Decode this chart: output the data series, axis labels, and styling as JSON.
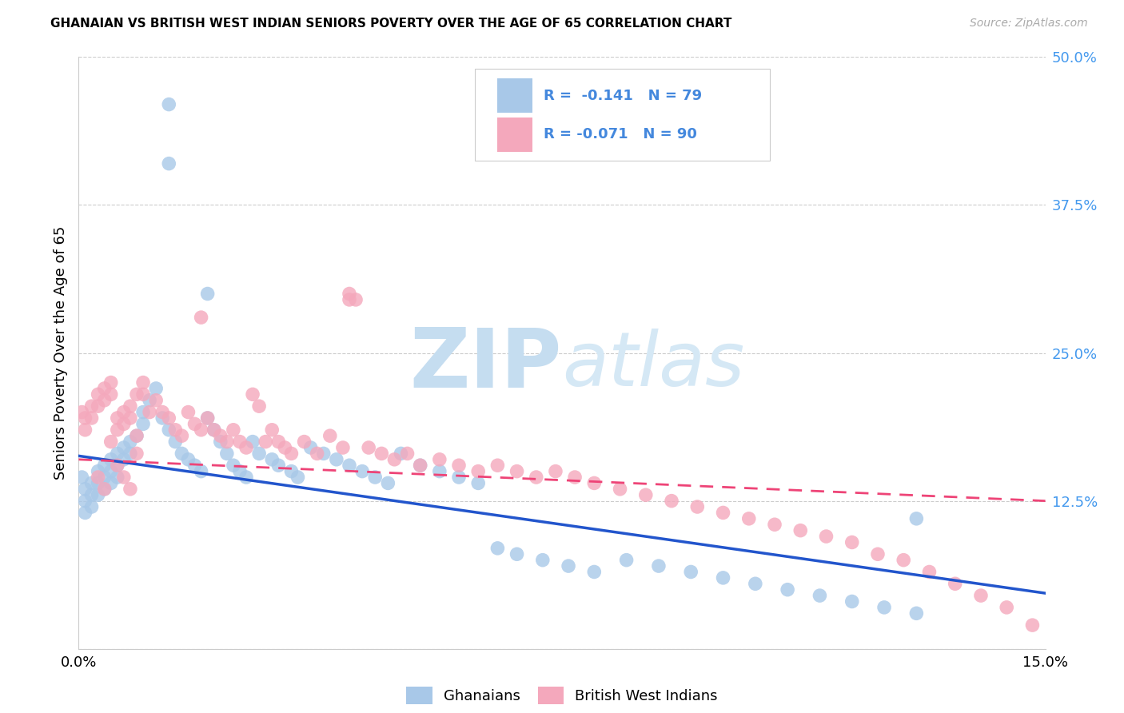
{
  "title": "GHANAIAN VS BRITISH WEST INDIAN SENIORS POVERTY OVER THE AGE OF 65 CORRELATION CHART",
  "source": "Source: ZipAtlas.com",
  "ylabel": "Seniors Poverty Over the Age of 65",
  "xmin": 0.0,
  "xmax": 0.15,
  "ymin": 0.0,
  "ymax": 0.5,
  "legend_r1_prefix": "R = ",
  "legend_r1_val": "-0.141",
  "legend_n1_prefix": "N = ",
  "legend_n1_val": "79",
  "legend_r2_prefix": "R = ",
  "legend_r2_val": "-0.071",
  "legend_n2_prefix": "N = ",
  "legend_n2_val": "90",
  "color_ghanaian": "#a8c8e8",
  "color_bwi": "#f4a8bc",
  "color_line_ghanaian": "#2255cc",
  "color_line_bwi": "#ee4477",
  "color_legend_text": "#4488dd",
  "color_ytick": "#4499ee",
  "watermark_zip": "#c5ddf0",
  "watermark_atlas": "#d5e8f5",
  "legend_label_1": "Ghanaians",
  "legend_label_2": "British West Indians",
  "trend_g_x0": 0.0,
  "trend_g_y0": 0.163,
  "trend_g_x1": 0.15,
  "trend_g_y1": 0.047,
  "trend_b_x0": 0.0,
  "trend_b_y0": 0.16,
  "trend_b_x1": 0.15,
  "trend_b_y1": 0.125,
  "ghanaian_x": [
    0.0005,
    0.001,
    0.001,
    0.001,
    0.002,
    0.002,
    0.002,
    0.003,
    0.003,
    0.003,
    0.004,
    0.004,
    0.004,
    0.005,
    0.005,
    0.005,
    0.006,
    0.006,
    0.006,
    0.007,
    0.007,
    0.008,
    0.008,
    0.009,
    0.01,
    0.01,
    0.011,
    0.012,
    0.013,
    0.014,
    0.015,
    0.016,
    0.017,
    0.018,
    0.019,
    0.02,
    0.021,
    0.022,
    0.023,
    0.024,
    0.025,
    0.026,
    0.027,
    0.028,
    0.03,
    0.031,
    0.033,
    0.034,
    0.036,
    0.038,
    0.04,
    0.042,
    0.044,
    0.046,
    0.048,
    0.05,
    0.053,
    0.056,
    0.059,
    0.062,
    0.065,
    0.068,
    0.072,
    0.076,
    0.08,
    0.085,
    0.09,
    0.095,
    0.1,
    0.105,
    0.11,
    0.115,
    0.12,
    0.125,
    0.13,
    0.014,
    0.014,
    0.02,
    0.13
  ],
  "ghanaian_y": [
    0.145,
    0.135,
    0.125,
    0.115,
    0.14,
    0.13,
    0.12,
    0.15,
    0.14,
    0.13,
    0.155,
    0.145,
    0.135,
    0.16,
    0.15,
    0.14,
    0.165,
    0.155,
    0.145,
    0.17,
    0.16,
    0.175,
    0.165,
    0.18,
    0.2,
    0.19,
    0.21,
    0.22,
    0.195,
    0.185,
    0.175,
    0.165,
    0.16,
    0.155,
    0.15,
    0.195,
    0.185,
    0.175,
    0.165,
    0.155,
    0.15,
    0.145,
    0.175,
    0.165,
    0.16,
    0.155,
    0.15,
    0.145,
    0.17,
    0.165,
    0.16,
    0.155,
    0.15,
    0.145,
    0.14,
    0.165,
    0.155,
    0.15,
    0.145,
    0.14,
    0.085,
    0.08,
    0.075,
    0.07,
    0.065,
    0.075,
    0.07,
    0.065,
    0.06,
    0.055,
    0.05,
    0.045,
    0.04,
    0.035,
    0.03,
    0.46,
    0.41,
    0.3,
    0.11
  ],
  "bwi_x": [
    0.0005,
    0.001,
    0.001,
    0.002,
    0.002,
    0.003,
    0.003,
    0.004,
    0.004,
    0.005,
    0.005,
    0.006,
    0.006,
    0.007,
    0.007,
    0.008,
    0.008,
    0.009,
    0.009,
    0.01,
    0.01,
    0.011,
    0.012,
    0.013,
    0.014,
    0.015,
    0.016,
    0.017,
    0.018,
    0.019,
    0.02,
    0.021,
    0.022,
    0.023,
    0.024,
    0.025,
    0.026,
    0.027,
    0.028,
    0.029,
    0.03,
    0.031,
    0.032,
    0.033,
    0.035,
    0.037,
    0.039,
    0.041,
    0.043,
    0.045,
    0.047,
    0.049,
    0.051,
    0.053,
    0.056,
    0.059,
    0.062,
    0.065,
    0.068,
    0.071,
    0.074,
    0.077,
    0.08,
    0.084,
    0.088,
    0.092,
    0.096,
    0.1,
    0.104,
    0.108,
    0.112,
    0.116,
    0.12,
    0.124,
    0.128,
    0.132,
    0.136,
    0.14,
    0.144,
    0.148,
    0.019,
    0.042,
    0.042,
    0.005,
    0.006,
    0.007,
    0.008,
    0.009,
    0.003,
    0.004
  ],
  "bwi_y": [
    0.2,
    0.195,
    0.185,
    0.205,
    0.195,
    0.215,
    0.205,
    0.22,
    0.21,
    0.225,
    0.215,
    0.195,
    0.185,
    0.2,
    0.19,
    0.205,
    0.195,
    0.18,
    0.215,
    0.225,
    0.215,
    0.2,
    0.21,
    0.2,
    0.195,
    0.185,
    0.18,
    0.2,
    0.19,
    0.185,
    0.195,
    0.185,
    0.18,
    0.175,
    0.185,
    0.175,
    0.17,
    0.215,
    0.205,
    0.175,
    0.185,
    0.175,
    0.17,
    0.165,
    0.175,
    0.165,
    0.18,
    0.17,
    0.295,
    0.17,
    0.165,
    0.16,
    0.165,
    0.155,
    0.16,
    0.155,
    0.15,
    0.155,
    0.15,
    0.145,
    0.15,
    0.145,
    0.14,
    0.135,
    0.13,
    0.125,
    0.12,
    0.115,
    0.11,
    0.105,
    0.1,
    0.095,
    0.09,
    0.08,
    0.075,
    0.065,
    0.055,
    0.045,
    0.035,
    0.02,
    0.28,
    0.3,
    0.295,
    0.175,
    0.155,
    0.145,
    0.135,
    0.165,
    0.145,
    0.135
  ]
}
